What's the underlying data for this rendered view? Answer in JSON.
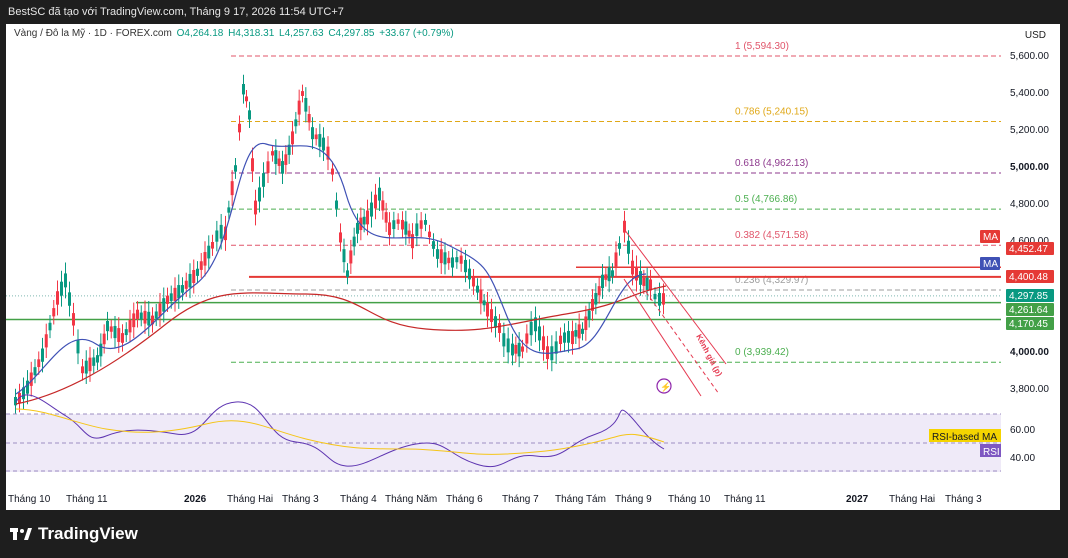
{
  "topbar": {
    "title": "BestSC đã tạo với TradingView.com, Tháng 9 17, 2026 11:54 UTC+7"
  },
  "legend": {
    "symbol": "Vàng / Đô la Mỹ · 1D · FOREX.com",
    "open": "O4,264.18",
    "high": "H4,318.31",
    "low": "L4,257.63",
    "close": "C4,297.85",
    "change": "+33.67 (+0.79%)"
  },
  "currency": "USD",
  "price_axis": [
    "5,600.00",
    "5,400.00",
    "5,200.00",
    "5,000.00",
    "4,800.00",
    "4,600.00",
    "4,000.00",
    "3,800.00"
  ],
  "rsi_axis": [
    "60.00",
    "40.00"
  ],
  "time_axis": [
    "Tháng 10",
    "Tháng 11",
    "2026",
    "Tháng Hai",
    "Tháng 3",
    "Tháng 4",
    "Tháng Năm",
    "Tháng 6",
    "Tháng 7",
    "Tháng Tám",
    "Tháng 9",
    "Tháng 10",
    "Tháng 11",
    "2027",
    "Tháng Hai",
    "Tháng 3"
  ],
  "fib_levels": [
    {
      "label": "1 (5,594.30)",
      "color": "#e0556a"
    },
    {
      "label": "0.786 (5,240.15)",
      "color": "#e0a818"
    },
    {
      "label": "0.618 (4,962.13)",
      "color": "#8e3a8e"
    },
    {
      "label": "0.5 (4,766.86)",
      "color": "#4caf50"
    },
    {
      "label": "0.382 (4,571.58)",
      "color": "#e0556a"
    },
    {
      "label": "0.236 (4,329.97)",
      "color": "#9e9e9e"
    },
    {
      "label": "0 (3,939.42)",
      "color": "#4caf50"
    }
  ],
  "price_tags": [
    {
      "text": "MA",
      "color": "#e53935"
    },
    {
      "text": "4,452.47",
      "color": "#e53935"
    },
    {
      "text": "MA",
      "color": "#3f51b5"
    },
    {
      "text": "4,400.48",
      "color": "#e53935"
    },
    {
      "text": "4,297.85",
      "color": "#089981"
    },
    {
      "text": "4,261.64",
      "color": "#43a047"
    },
    {
      "text": "4,170.45",
      "color": "#43a047"
    }
  ],
  "rsi_tags": [
    {
      "text": "RSI-based MA",
      "color": "#f5d400"
    },
    {
      "text": "RSI",
      "color": "#7e57c2"
    }
  ],
  "channel_label": "Kênh giá (p)",
  "brand": "TradingView"
}
